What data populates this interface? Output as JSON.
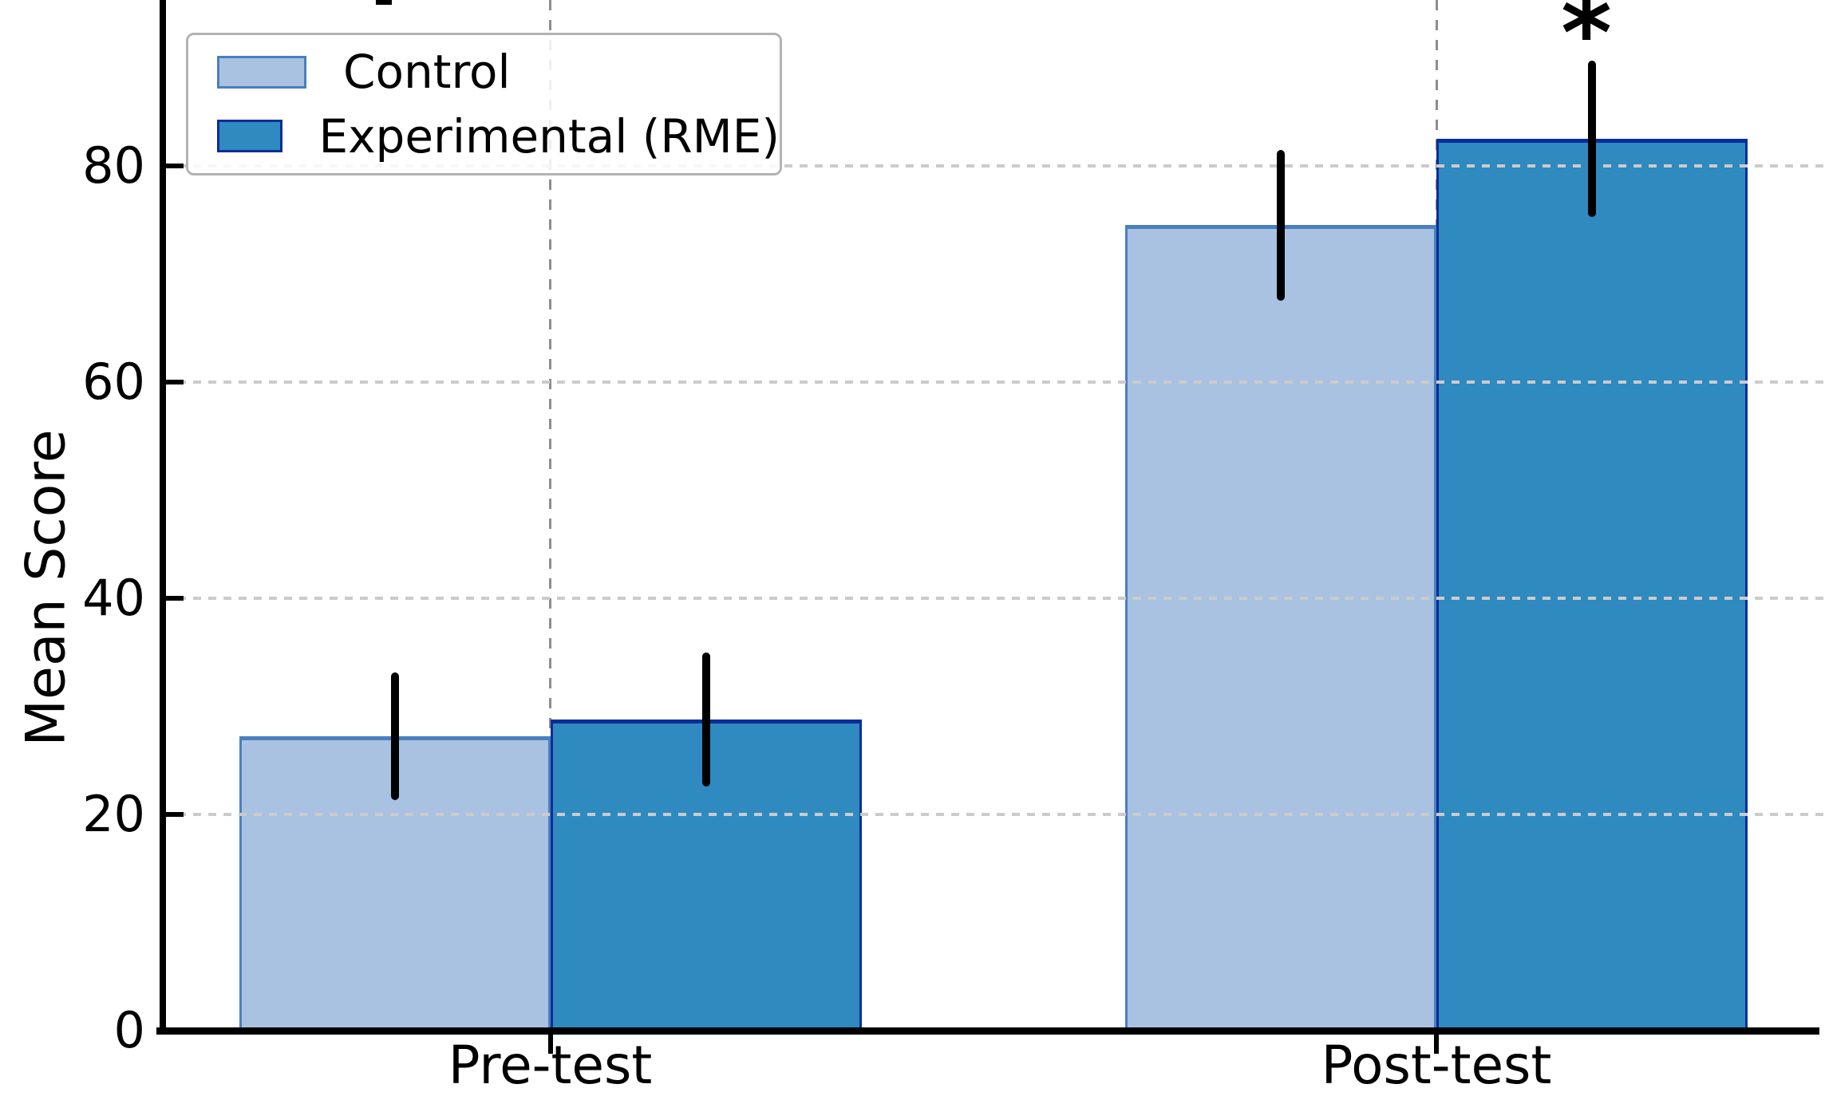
{
  "chart_data": {
    "type": "bar",
    "categories": [
      "Pre-test",
      "Post-test"
    ],
    "series": [
      {
        "name": "Control",
        "values": [
          27.2,
          74.5
        ],
        "errors": [
          5.9,
          7.0
        ],
        "fill": "#a9c2e1",
        "edge": "#4a7fc0"
      },
      {
        "name": "Experimental (RME)",
        "values": [
          28.8,
          82.5
        ],
        "errors": [
          6.2,
          7.2
        ],
        "fill": "#2e8abf",
        "edge": "#0a2d9a"
      }
    ],
    "ylabel": "Mean Score",
    "yticks": [
      0,
      20,
      40,
      60,
      80
    ],
    "ylim": [
      0,
      95.4
    ],
    "grid": true,
    "grid_style": "dashed",
    "legend_position": "upper left",
    "significance_marker": {
      "text": "*",
      "category": "Post-test",
      "series": "Experimental (RME)"
    },
    "colors": {
      "axis": "#000000",
      "hgrid": "#cbcbcb",
      "vgrid": "#8d8d8d",
      "errorbar": "#000000",
      "legend_border": "#b3b3b3",
      "background": "#ffffff"
    }
  }
}
